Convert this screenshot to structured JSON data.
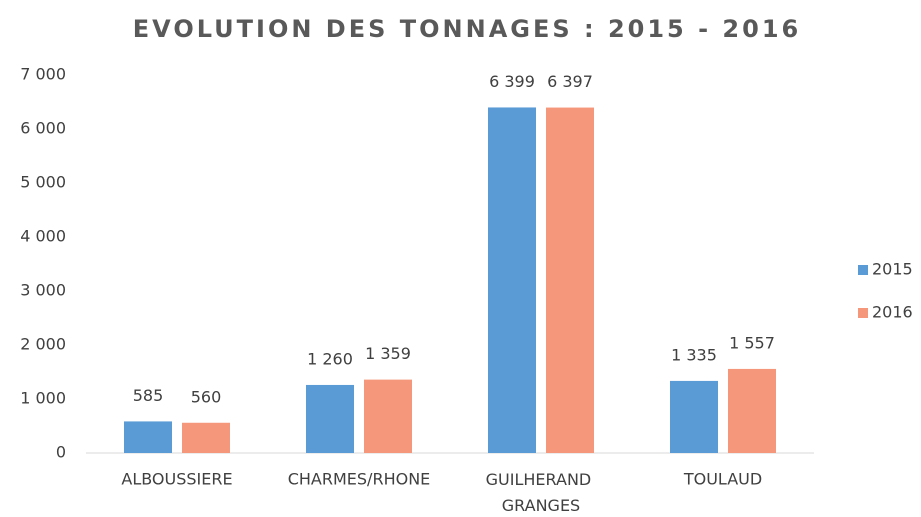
{
  "chart_data": {
    "type": "bar",
    "title": "EVOLUTION DES TONNAGES : 2015 - 2016",
    "categories": [
      "ALBOUSSIERE",
      "CHARMES/RHONE",
      "GUILHERAND GRANGES",
      "TOULAUD"
    ],
    "series": [
      {
        "name": "2015",
        "color": "#5b9bd5",
        "values": [
          585,
          1260,
          6399,
          1335
        ],
        "value_labels": [
          "585",
          "1 260",
          "6 399",
          "1 335"
        ]
      },
      {
        "name": "2016",
        "color": "#f4977a",
        "values": [
          560,
          1359,
          6397,
          1557
        ],
        "value_labels": [
          "560",
          "1 359",
          "6 397",
          "1 557"
        ]
      }
    ],
    "ylim": [
      0,
      7000
    ],
    "yticks": [
      0,
      {
        "value": 1000,
        "label": "1 000"
      },
      {
        "value": 2000,
        "label": "2 000"
      },
      {
        "value": 3000,
        "label": "3 000"
      },
      {
        "value": 4000,
        "label": "4 000"
      },
      {
        "value": 5000,
        "label": "5 000"
      },
      {
        "value": 6000,
        "label": "6 000"
      },
      {
        "value": 7000,
        "label": "7 000"
      }
    ],
    "grid": false,
    "legend": "right"
  }
}
